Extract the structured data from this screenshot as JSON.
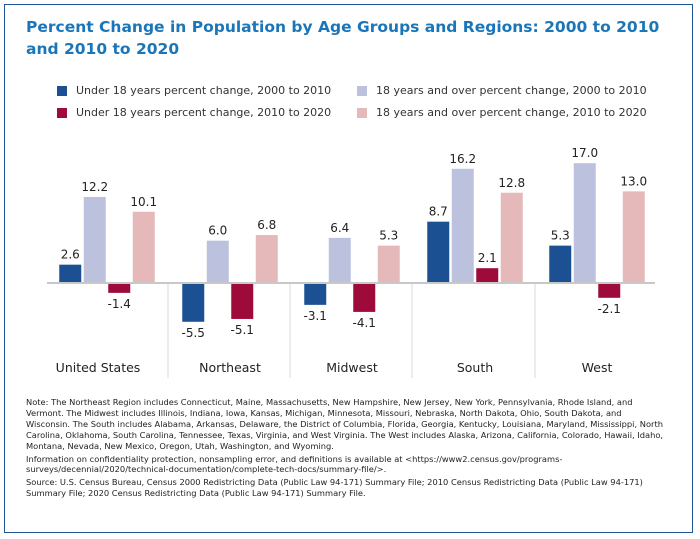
{
  "chart_data": {
    "type": "bar",
    "title": "Percent Change in Population by Age Groups and Regions: 2000 to 2010 and 2010 to 2020",
    "xlabel": "",
    "ylabel": "",
    "ylim": [
      -7,
      18
    ],
    "grid": false,
    "legend_position": "top",
    "categories": [
      "United States",
      "Northeast",
      "Midwest",
      "South",
      "West"
    ],
    "series": [
      {
        "name": "Under 18 years percent change, 2000 to 2010",
        "color": "#1b5093",
        "values": [
          2.6,
          -5.5,
          -3.1,
          8.7,
          5.3
        ]
      },
      {
        "name": "18 years and over percent change, 2000 to 2010",
        "color": "#bcc2de",
        "values": [
          12.2,
          6.0,
          6.4,
          16.2,
          17.0
        ]
      },
      {
        "name": "Under 18 years percent change, 2010 to 2020",
        "color": "#9e0a3a",
        "values": [
          -1.4,
          -5.1,
          -4.1,
          2.1,
          -2.1
        ]
      },
      {
        "name": "18 years and over percent change, 2010 to 2020",
        "color": "#e5b9b9",
        "values": [
          10.1,
          6.8,
          5.3,
          12.8,
          13.0
        ]
      }
    ],
    "data_labels": [
      [
        "2.6",
        "-5.5",
        "-3.1",
        "8.7",
        "5.3"
      ],
      [
        "12.2",
        "6.0",
        "6.4",
        "16.2",
        "17.0"
      ],
      [
        "-1.4",
        "-5.1",
        "-4.1",
        "2.1",
        "-2.1"
      ],
      [
        "10.1",
        "6.8",
        "5.3",
        "12.8",
        "13.0"
      ]
    ]
  },
  "title": "Percent Change in Population by Age Groups and Regions: 2000 to 2010 and 2010 to 2020",
  "legend": [
    {
      "label": "Under 18 years percent change, 2000 to 2010",
      "color": "#1b5093"
    },
    {
      "label": "18 years and over percent change, 2000 to 2010",
      "color": "#bcc2de"
    },
    {
      "label": "Under 18 years percent change, 2010 to 2020",
      "color": "#9e0a3a"
    },
    {
      "label": "18 years and over percent change, 2010 to 2020",
      "color": "#e5b9b9"
    }
  ],
  "notes": {
    "regions": "Note: The Northeast Region includes Connecticut, Maine, Massachusetts, New Hampshire, New Jersey, New York, Pennsylvania, Rhode Island, and Vermont. The Midwest includes Illinois, Indiana, Iowa, Kansas, Michigan, Minnesota, Missouri, Nebraska, North Dakota, Ohio, South Dakota, and Wisconsin. The South includes Alabama, Arkansas, Delaware, the District of Columbia, Florida, Georgia, Kentucky, Louisiana, Maryland, Mississippi, North Carolina, Oklahoma, South Carolina, Tennessee, Texas, Virginia, and West Virginia. The West includes Alaska, Arizona, California, Colorado, Hawaii, Idaho, Montana, Nevada, New Mexico, Oregon, Utah, Washington, and Wyoming.",
    "confidentiality": "Information on confidentiality protection, nonsampling error, and definitions is available at <https://www2.census.gov/programs-surveys/decennial/2020/technical-documentation/complete-tech-docs/summary-file/>.",
    "source": "Source: U.S. Census Bureau, Census 2000 Redistricting Data (Public Law 94-171) Summary File; 2010 Census Redistricting Data (Public Law 94-171) Summary File; 2020 Census Redistricting Data (Public Law 94-171) Summary File."
  }
}
